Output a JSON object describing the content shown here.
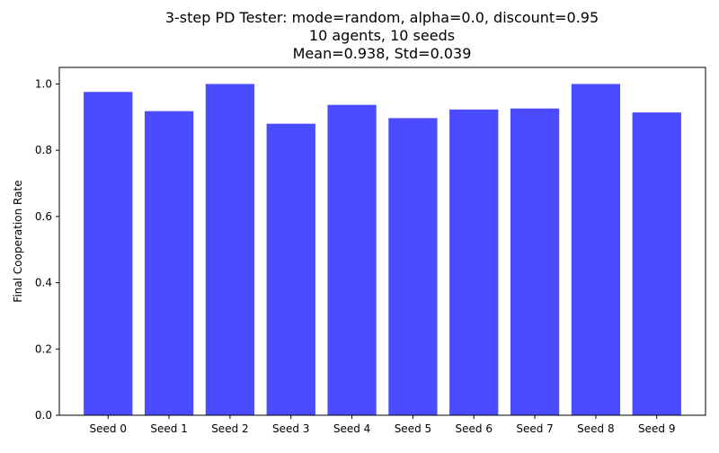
{
  "chart_data": {
    "type": "bar",
    "title_lines": [
      "3-step PD Tester: mode=random, alpha=0.0, discount=0.95",
      "10 agents, 10 seeds",
      "Mean=0.938, Std=0.039"
    ],
    "xlabel": "",
    "ylabel": "Final Cooperation Rate",
    "categories": [
      "Seed 0",
      "Seed 1",
      "Seed 2",
      "Seed 3",
      "Seed 4",
      "Seed 5",
      "Seed 6",
      "Seed 7",
      "Seed 8",
      "Seed 9"
    ],
    "values": [
      0.976,
      0.918,
      1.0,
      0.88,
      0.937,
      0.897,
      0.923,
      0.926,
      1.0,
      0.914
    ],
    "ylim": [
      0,
      1.05
    ],
    "yticks": [
      0.0,
      0.2,
      0.4,
      0.6,
      0.8,
      1.0
    ],
    "ytick_labels": [
      "0.0",
      "0.2",
      "0.4",
      "0.6",
      "0.8",
      "1.0"
    ],
    "bar_color": "#4b4bff",
    "grid": false,
    "legend": "none"
  }
}
